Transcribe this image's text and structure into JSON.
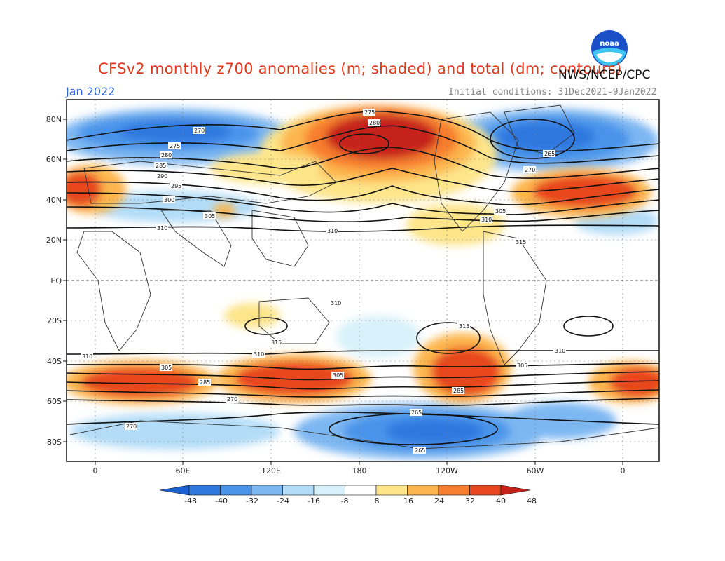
{
  "header": {
    "title": "CFSv2 monthly z700 anomalies (m; shaded) and total (dm; contours)",
    "credit": "NWS/NCEP/CPC",
    "month": "Jan 2022",
    "initial_conditions": "Initial conditions: 31Dec2021-9Jan2022"
  },
  "logo": {
    "icon": "noaa-logo",
    "text": "noaa"
  },
  "map": {
    "lat_labels": [
      "80N",
      "60N",
      "40N",
      "20N",
      "EQ",
      "20S",
      "40S",
      "60S",
      "80S"
    ],
    "lon_labels": [
      "0",
      "60E",
      "120E",
      "180",
      "120W",
      "60W",
      "0"
    ],
    "contour_labels": [
      "270",
      "275",
      "280",
      "285",
      "290",
      "295",
      "300",
      "305",
      "310",
      "315",
      "265"
    ]
  },
  "colorbar": {
    "labels": [
      "-48",
      "-40",
      "-32",
      "-24",
      "-16",
      "-8",
      "8",
      "16",
      "24",
      "32",
      "40",
      "48"
    ],
    "colors": [
      "#1b5fd0",
      "#2e78e0",
      "#4a94ea",
      "#7db7f2",
      "#b2dcf7",
      "#d8f1fa",
      "#ffffff",
      "#fde58a",
      "#fdb64e",
      "#f77e2e",
      "#e8461f",
      "#c6201a"
    ]
  }
}
